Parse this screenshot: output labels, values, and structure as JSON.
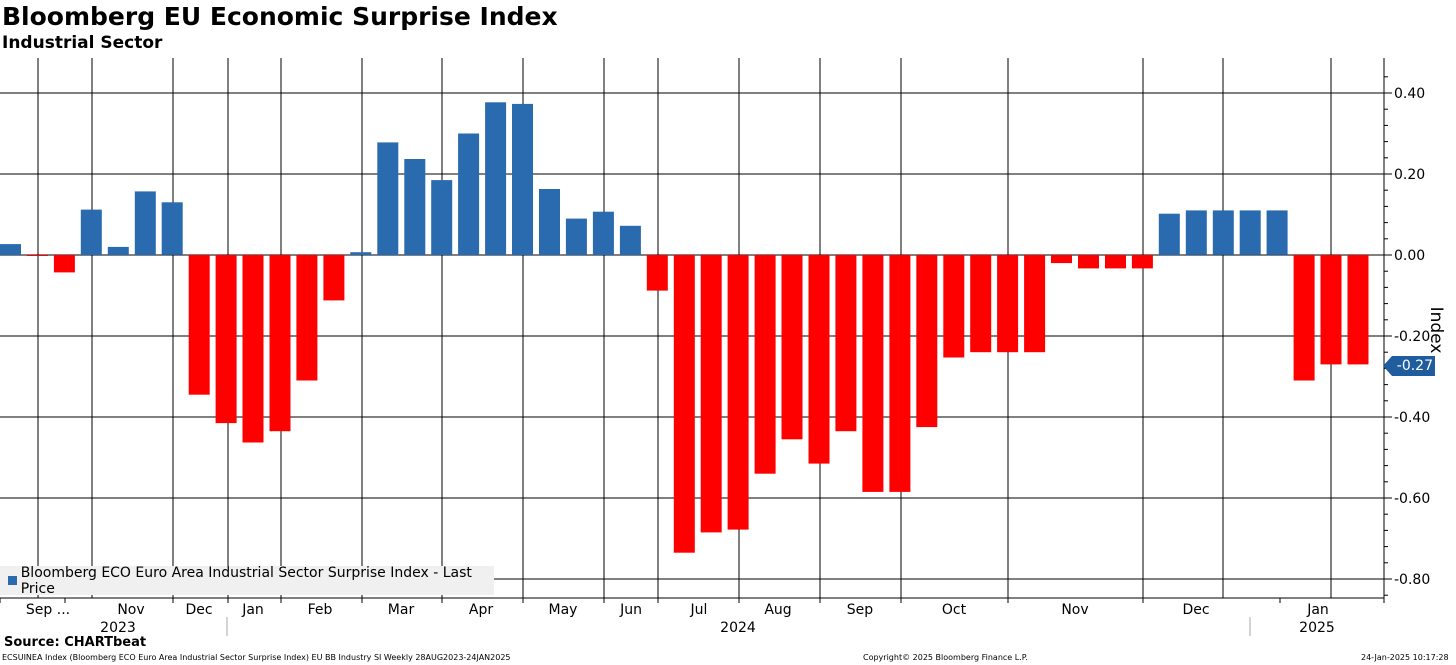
{
  "header": {
    "title": "Bloomberg EU Economic Surprise Index",
    "subtitle": "Industrial Sector"
  },
  "legend": {
    "label": "Bloomberg ECO Euro Area Industrial Sector Surprise Index - Last Price"
  },
  "last_value_label": "-0.27",
  "source": "Source: CHARTbeat",
  "footer": {
    "left": "ECSUINEA Index (Bloomberg ECO Euro Area Industrial Sector Surprise Index) EU BB Industry SI  Weekly 28AUG2023-24JAN2025",
    "center": "Copyright© 2025 Bloomberg Finance L.P.",
    "right": "24-Jan-2025 10:17:28"
  },
  "colors": {
    "positive": "#2a6aaf",
    "negative": "#ff0000",
    "badge": "#1f5d9e"
  },
  "chart_data": {
    "type": "bar",
    "title": "Bloomberg EU Economic Surprise Index",
    "subtitle": "Industrial Sector",
    "ylabel": "Index",
    "ylim": [
      -0.84,
      0.48
    ],
    "yticks": [
      0.4,
      0.2,
      0.0,
      -0.2,
      -0.4,
      -0.6,
      -0.8
    ],
    "ytick_labels": [
      "0.40",
      "0.20",
      "0.00",
      "-0.20",
      "-0.40",
      "-0.60",
      "-0.80"
    ],
    "grid": true,
    "legend_position": "bottom-left",
    "y_axis_side": "right",
    "x_month_labels": [
      "Sep ...",
      "Nov",
      "Dec",
      "Jan",
      "Feb",
      "Mar",
      "Apr",
      "May",
      "Jun",
      "Jul",
      "Aug",
      "Sep",
      "Oct",
      "Nov",
      "Dec",
      "Jan"
    ],
    "x_year_labels": [
      "2023",
      "2024",
      "2025"
    ],
    "series": [
      {
        "name": "Bloomberg ECO Euro Area Industrial Sector Surprise Index - Last Price",
        "values": [
          0.027,
          -0.002,
          -0.043,
          0.112,
          0.02,
          0.157,
          0.13,
          -0.345,
          -0.415,
          -0.463,
          -0.435,
          -0.31,
          -0.112,
          0.007,
          0.278,
          0.237,
          0.185,
          0.3,
          0.377,
          0.373,
          0.163,
          0.09,
          0.107,
          0.072,
          -0.088,
          -0.735,
          -0.685,
          -0.678,
          -0.54,
          -0.455,
          -0.515,
          -0.435,
          -0.585,
          -0.585,
          -0.425,
          -0.253,
          -0.24,
          -0.24,
          -0.24,
          -0.02,
          -0.033,
          -0.033,
          -0.033,
          0.102,
          0.11,
          0.11,
          0.11,
          0.11,
          -0.31,
          -0.27,
          -0.27
        ]
      }
    ],
    "last_value": -0.27
  }
}
